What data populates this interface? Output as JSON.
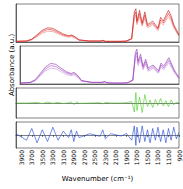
{
  "chart_data": [
    {
      "type": "line",
      "tick_labels": false,
      "xlim": [
        4000,
        900
      ],
      "ylim": [
        0,
        1.2
      ],
      "x": [
        4000,
        3800,
        3700,
        3600,
        3500,
        3400,
        3300,
        3200,
        3100,
        3000,
        2950,
        2900,
        2850,
        2800,
        2600,
        2400,
        2350,
        2300,
        2200,
        2000,
        1900,
        1800,
        1750,
        1720,
        1700,
        1650,
        1600,
        1550,
        1500,
        1450,
        1400,
        1350,
        1300,
        1250,
        1200,
        1150,
        1100,
        1050,
        1000,
        950,
        900
      ],
      "series": [
        {
          "color": "#e8231e",
          "values": [
            0.02,
            0.03,
            0.08,
            0.2,
            0.33,
            0.4,
            0.38,
            0.3,
            0.22,
            0.18,
            0.2,
            0.17,
            0.12,
            0.06,
            0.03,
            0.03,
            0.05,
            0.02,
            0.02,
            0.02,
            0.03,
            0.1,
            0.85,
            0.95,
            0.6,
            0.9,
            0.55,
            0.85,
            0.5,
            0.55,
            0.6,
            0.5,
            0.4,
            0.7,
            0.6,
            0.75,
            0.9,
            0.75,
            0.5,
            0.35,
            0.2
          ]
        },
        {
          "color": "#f07a76",
          "values": [
            0.02,
            0.03,
            0.07,
            0.17,
            0.28,
            0.34,
            0.33,
            0.26,
            0.19,
            0.15,
            0.17,
            0.14,
            0.1,
            0.05,
            0.03,
            0.03,
            0.04,
            0.02,
            0.02,
            0.02,
            0.03,
            0.09,
            0.75,
            0.85,
            0.55,
            0.8,
            0.5,
            0.75,
            0.45,
            0.5,
            0.55,
            0.45,
            0.36,
            0.62,
            0.54,
            0.68,
            0.8,
            0.67,
            0.45,
            0.31,
            0.18
          ]
        },
        {
          "color": "#c0120e",
          "values": [
            0.02,
            0.03,
            0.09,
            0.23,
            0.37,
            0.45,
            0.43,
            0.34,
            0.25,
            0.2,
            0.22,
            0.19,
            0.13,
            0.07,
            0.03,
            0.03,
            0.05,
            0.02,
            0.02,
            0.02,
            0.03,
            0.11,
            0.95,
            1.05,
            0.66,
            1.0,
            0.6,
            0.95,
            0.55,
            0.6,
            0.66,
            0.55,
            0.44,
            0.78,
            0.66,
            0.83,
            1.0,
            0.83,
            0.55,
            0.39,
            0.22
          ]
        }
      ]
    },
    {
      "type": "line",
      "tick_labels": false,
      "ylabel": "Absorbance (a.u.)",
      "xlim": [
        4000,
        900
      ],
      "ylim": [
        0,
        1.2
      ],
      "x": [
        4000,
        3800,
        3700,
        3600,
        3500,
        3400,
        3300,
        3200,
        3100,
        3000,
        2950,
        2900,
        2850,
        2800,
        2600,
        2400,
        2350,
        2300,
        2200,
        2000,
        1900,
        1800,
        1750,
        1720,
        1700,
        1650,
        1600,
        1550,
        1500,
        1450,
        1400,
        1350,
        1300,
        1250,
        1200,
        1150,
        1100,
        1050,
        1000,
        950,
        900
      ],
      "series": [
        {
          "color": "#a64ac9",
          "values": [
            0.03,
            0.05,
            0.12,
            0.3,
            0.48,
            0.58,
            0.55,
            0.45,
            0.35,
            0.3,
            0.33,
            0.28,
            0.2,
            0.1,
            0.05,
            0.05,
            0.07,
            0.04,
            0.03,
            0.03,
            0.04,
            0.12,
            0.9,
            1.0,
            0.65,
            0.85,
            0.5,
            0.7,
            0.45,
            0.5,
            0.55,
            0.45,
            0.38,
            0.6,
            0.5,
            0.62,
            0.75,
            0.6,
            0.42,
            0.3,
            0.18
          ]
        },
        {
          "color": "#c98be0",
          "values": [
            0.03,
            0.04,
            0.1,
            0.26,
            0.42,
            0.5,
            0.48,
            0.39,
            0.3,
            0.26,
            0.29,
            0.24,
            0.17,
            0.09,
            0.05,
            0.05,
            0.06,
            0.04,
            0.03,
            0.03,
            0.04,
            0.1,
            0.8,
            0.9,
            0.58,
            0.76,
            0.45,
            0.63,
            0.4,
            0.45,
            0.5,
            0.4,
            0.34,
            0.54,
            0.45,
            0.56,
            0.68,
            0.54,
            0.38,
            0.27,
            0.16
          ]
        },
        {
          "color": "#8a2fb0",
          "values": [
            0.03,
            0.05,
            0.14,
            0.34,
            0.54,
            0.65,
            0.62,
            0.5,
            0.39,
            0.33,
            0.37,
            0.31,
            0.22,
            0.11,
            0.05,
            0.05,
            0.08,
            0.04,
            0.03,
            0.03,
            0.04,
            0.13,
            1.0,
            1.1,
            0.72,
            0.94,
            0.56,
            0.78,
            0.5,
            0.56,
            0.6,
            0.5,
            0.42,
            0.66,
            0.56,
            0.69,
            0.83,
            0.66,
            0.47,
            0.33,
            0.2
          ]
        }
      ]
    },
    {
      "type": "line",
      "tick_labels": false,
      "xlim": [
        4000,
        900
      ],
      "ylim": [
        -0.5,
        0.5
      ],
      "x": [
        4000,
        3800,
        3700,
        3600,
        3500,
        3400,
        3300,
        3200,
        3100,
        3000,
        2950,
        2900,
        2850,
        2800,
        2600,
        2400,
        2350,
        2300,
        2200,
        2000,
        1900,
        1800,
        1750,
        1720,
        1700,
        1650,
        1600,
        1550,
        1500,
        1450,
        1400,
        1350,
        1300,
        1250,
        1200,
        1150,
        1100,
        1050,
        1000,
        950,
        900
      ],
      "series": [
        {
          "color": "#44cc22",
          "values": [
            0,
            0,
            0.01,
            0.02,
            -0.02,
            0.03,
            -0.01,
            0.02,
            -0.02,
            0.01,
            0.04,
            -0.05,
            0.03,
            -0.01,
            0,
            0.01,
            -0.03,
            0.02,
            0,
            0,
            0.01,
            0.05,
            -0.3,
            0.35,
            -0.25,
            0.2,
            -0.32,
            0.28,
            -0.12,
            0.1,
            -0.15,
            0.12,
            -0.08,
            0.15,
            -0.1,
            0.08,
            -0.12,
            0.1,
            -0.06,
            0.03,
            0
          ]
        }
      ]
    },
    {
      "type": "line",
      "tick_labels": "x",
      "xlabel": "Wavenumber (cm⁻¹)",
      "xlim": [
        4000,
        900
      ],
      "ylim": [
        -0.5,
        0.5
      ],
      "xticks": [
        3900,
        3700,
        3500,
        3300,
        3100,
        2900,
        2700,
        2500,
        2300,
        2100,
        1900,
        1700,
        1500,
        1300,
        1100,
        900
      ],
      "x": [
        4000,
        3800,
        3700,
        3600,
        3500,
        3400,
        3300,
        3200,
        3100,
        3000,
        2950,
        2900,
        2850,
        2800,
        2600,
        2400,
        2350,
        2300,
        2200,
        2000,
        1900,
        1800,
        1750,
        1720,
        1700,
        1650,
        1600,
        1550,
        1500,
        1450,
        1400,
        1350,
        1300,
        1250,
        1200,
        1150,
        1100,
        1050,
        1000,
        950,
        900
      ],
      "series": [
        {
          "color": "#1a3fd1",
          "values": [
            0.05,
            -0.2,
            0.25,
            -0.3,
            0.2,
            -0.25,
            0.3,
            -0.2,
            0.15,
            -0.1,
            0.2,
            -0.25,
            0.15,
            -0.1,
            0.05,
            -0.05,
            0.2,
            -0.15,
            0.05,
            -0.04,
            0.06,
            -0.2,
            0.35,
            -0.4,
            0.3,
            -0.3,
            0.35,
            -0.25,
            0.2,
            -0.3,
            0.25,
            -0.2,
            0.3,
            -0.25,
            0.2,
            -0.3,
            0.25,
            -0.2,
            0.3,
            -0.15,
            0.1
          ]
        }
      ]
    }
  ]
}
